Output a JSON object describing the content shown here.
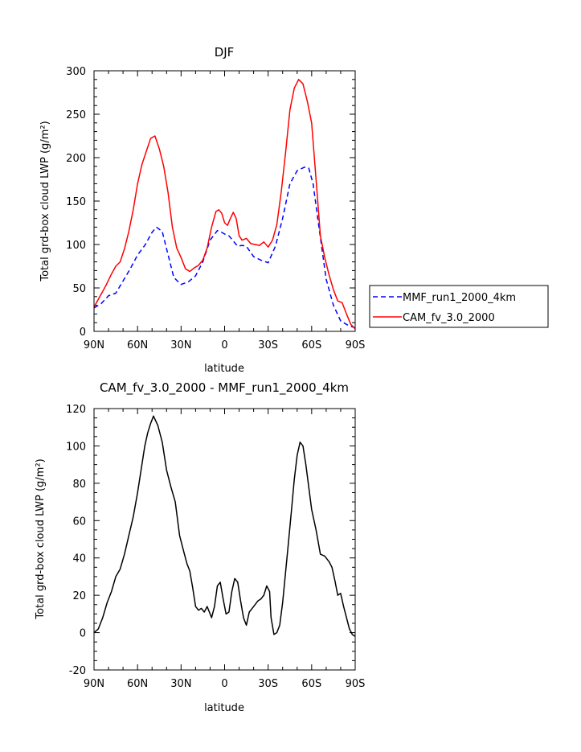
{
  "chart_data": [
    {
      "type": "line",
      "title": "DJF",
      "xlabel": "latitude",
      "ylabel": "Total grd-box cloud LWP (g/m²)",
      "xlim": [
        90,
        -90
      ],
      "ylim": [
        0,
        300
      ],
      "x_ticks": [
        90,
        60,
        30,
        0,
        -30,
        -60,
        -90
      ],
      "x_tick_labels": [
        "90N",
        "60N",
        "30N",
        "0",
        "30S",
        "60S",
        "90S"
      ],
      "y_ticks": [
        0,
        50,
        100,
        150,
        200,
        250,
        300
      ],
      "y_tick_labels": [
        "0",
        "50",
        "100",
        "150",
        "200",
        "250",
        "300"
      ],
      "legend_position": "outside-right",
      "series": [
        {
          "name": "MMF_run1_2000_4km",
          "color": "#0000ff",
          "dash": "dashed",
          "x": [
            90,
            85,
            80,
            75,
            70,
            65,
            60,
            55,
            50,
            47,
            43,
            40,
            35,
            30,
            25,
            20,
            15,
            10,
            5,
            2,
            0,
            -3,
            -6,
            -9,
            -12,
            -15,
            -20,
            -25,
            -30,
            -35,
            -40,
            -45,
            -50,
            -55,
            -58,
            -61,
            -65,
            -70,
            -75,
            -80,
            -85,
            -90
          ],
          "y": [
            27,
            32,
            41,
            44,
            58,
            72,
            88,
            99,
            114,
            120,
            115,
            95,
            62,
            54,
            57,
            64,
            80,
            105,
            116,
            114,
            112,
            110,
            104,
            98,
            99,
            98,
            86,
            82,
            79,
            98,
            130,
            170,
            185,
            189,
            188,
            170,
            120,
            60,
            30,
            12,
            7,
            4
          ]
        },
        {
          "name": "CAM_fv_3.0_2000",
          "color": "#ff0000",
          "dash": "solid",
          "x": [
            90,
            86,
            82,
            78,
            75,
            72,
            69,
            66,
            63,
            60,
            57,
            54,
            51,
            48,
            45,
            42,
            39,
            36,
            33,
            30,
            27,
            24,
            21,
            18,
            15,
            12,
            9,
            6,
            4,
            2,
            0,
            -2,
            -4,
            -6,
            -8,
            -10,
            -12,
            -15,
            -18,
            -21,
            -24,
            -27,
            -30,
            -33,
            -36,
            -39,
            -42,
            -45,
            -48,
            -51,
            -54,
            -57,
            -60,
            -63,
            -66,
            -69,
            -72,
            -75,
            -78,
            -81,
            -84,
            -87,
            -90
          ],
          "y": [
            28,
            40,
            52,
            66,
            75,
            80,
            95,
            115,
            140,
            170,
            192,
            207,
            222,
            225,
            210,
            190,
            160,
            120,
            96,
            85,
            72,
            69,
            73,
            76,
            82,
            96,
            120,
            138,
            140,
            136,
            125,
            122,
            130,
            137,
            130,
            110,
            105,
            107,
            101,
            100,
            99,
            103,
            97,
            105,
            123,
            160,
            205,
            255,
            280,
            290,
            285,
            265,
            240,
            175,
            110,
            85,
            65,
            48,
            35,
            33,
            20,
            8,
            3
          ]
        }
      ]
    },
    {
      "type": "line",
      "title": "CAM_fv_3.0_2000 - MMF_run1_2000_4km",
      "xlabel": "latitude",
      "ylabel": "Total grd-box cloud LWP (g/m²)",
      "xlim": [
        90,
        -90
      ],
      "ylim": [
        -20,
        120
      ],
      "x_ticks": [
        90,
        60,
        30,
        0,
        -30,
        -60,
        -90
      ],
      "x_tick_labels": [
        "90N",
        "60N",
        "30N",
        "0",
        "30S",
        "60S",
        "90S"
      ],
      "y_ticks": [
        -20,
        0,
        20,
        40,
        60,
        80,
        100,
        120
      ],
      "y_tick_labels": [
        "-20",
        "0",
        "20",
        "40",
        "60",
        "80",
        "100",
        "120"
      ],
      "series": [
        {
          "color": "#000000",
          "dash": "solid",
          "x": [
            90,
            87,
            84,
            81,
            78,
            75,
            72,
            69,
            66,
            63,
            60,
            57,
            55,
            53,
            51,
            49,
            46,
            43,
            40,
            37,
            34,
            31,
            28,
            26,
            24,
            22,
            20,
            18,
            16,
            14,
            12,
            9,
            7,
            5,
            3,
            1,
            -1,
            -3,
            -5,
            -7,
            -9,
            -11,
            -13,
            -15,
            -17,
            -19,
            -21,
            -23,
            -25,
            -27,
            -29,
            -31,
            -32,
            -34,
            -36,
            -38,
            -40,
            -42,
            -44,
            -46,
            -48,
            -50,
            -52,
            -54,
            -56,
            -58,
            -60,
            -63,
            -66,
            -69,
            -72,
            -74,
            -76,
            -78,
            -80,
            -82,
            -84,
            -86,
            -88,
            -90
          ],
          "y": [
            0,
            2,
            8,
            16,
            22,
            30,
            34,
            42,
            52,
            62,
            75,
            90,
            100,
            107,
            112,
            116,
            111,
            102,
            87,
            78,
            70,
            52,
            43,
            37,
            33,
            24,
            14,
            12,
            13,
            11,
            14,
            8,
            14,
            25,
            27,
            18,
            10,
            11,
            22,
            29,
            27,
            17,
            8,
            4,
            11,
            13,
            15,
            17,
            18,
            20,
            25,
            22,
            8,
            -1,
            0,
            4,
            16,
            32,
            48,
            65,
            82,
            95,
            102,
            100,
            90,
            78,
            66,
            55,
            42,
            41,
            38,
            35,
            28,
            20,
            21,
            14,
            8,
            2,
            -1,
            -2
          ]
        }
      ]
    }
  ]
}
